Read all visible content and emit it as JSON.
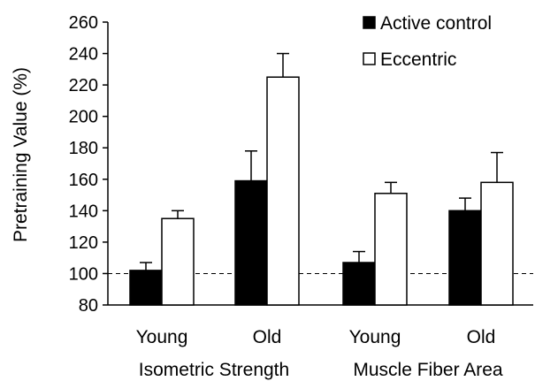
{
  "chart_data": {
    "type": "bar",
    "title": "",
    "xlabel": "",
    "ylabel": "Pretraining Value (%)",
    "ylim": [
      80,
      260
    ],
    "yticks": [
      80,
      100,
      120,
      140,
      160,
      180,
      200,
      220,
      240,
      260
    ],
    "reference_line": 100,
    "grid": false,
    "legend_position": "top-right",
    "categories": [
      "Young",
      "Old",
      "Young",
      "Old"
    ],
    "groups": [
      {
        "label": "Isometric Strength",
        "categories": [
          "Young",
          "Old"
        ]
      },
      {
        "label": "Muscle Fiber Area",
        "categories": [
          "Young",
          "Old"
        ]
      }
    ],
    "series": [
      {
        "name": "Active control",
        "color": "#000000",
        "values": [
          102,
          159,
          107,
          140
        ],
        "errors": [
          5,
          19,
          7,
          8
        ]
      },
      {
        "name": "Eccentric",
        "color": "#ffffff",
        "values": [
          135,
          225,
          151,
          158
        ],
        "errors": [
          5,
          15,
          7,
          19
        ]
      }
    ]
  }
}
